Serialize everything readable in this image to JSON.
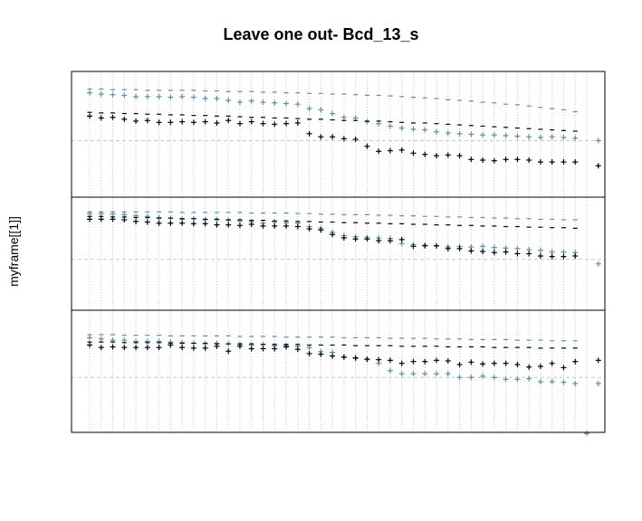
{
  "title": "Leave one out- Bcd_13_s",
  "ylabel": "myframe[[1]]",
  "colors": {
    "black": "#000000",
    "blue": "#5b8fa3",
    "grid": "#c8c8c8",
    "frame": "#000000"
  },
  "chart_data": {
    "type": "scatter",
    "title": "Leave one out- Bcd_13_s",
    "xlabel": "",
    "ylabel": "myframe[[1]]",
    "grid": "dotted vertical lines, dashed horizontal reference line",
    "columns": 43,
    "ylim": [
      -1,
      1
    ],
    "panels": [
      {
        "reference_y": 0,
        "series": [
          {
            "color": "blue",
            "marker": "+",
            "y": [
              0.76,
              0.74,
              0.73,
              0.72,
              0.7,
              0.7,
              0.7,
              0.69,
              0.7,
              0.69,
              0.67,
              0.67,
              0.64,
              0.61,
              0.63,
              0.61,
              0.6,
              0.59,
              0.58,
              0.51,
              0.49,
              0.43,
              0.37,
              0.36,
              0.3,
              0.27,
              0.23,
              0.2,
              0.18,
              0.17,
              0.14,
              0.12,
              0.11,
              0.1,
              0.09,
              0.09,
              0.08,
              0.07,
              0.06,
              0.05,
              0.06,
              0.05,
              0.04
            ]
          },
          {
            "color": "blue",
            "marker": "-",
            "y": [
              0.82,
              0.82,
              0.81,
              0.81,
              0.81,
              0.8,
              0.8,
              0.8,
              0.8,
              0.8,
              0.79,
              0.79,
              0.78,
              0.78,
              0.78,
              0.77,
              0.77,
              0.76,
              0.76,
              0.75,
              0.75,
              0.74,
              0.74,
              0.73,
              0.72,
              0.72,
              0.71,
              0.7,
              0.69,
              0.68,
              0.67,
              0.65,
              0.64,
              0.63,
              0.61,
              0.6,
              0.58,
              0.57,
              0.55,
              0.53,
              0.51,
              0.49,
              0.46
            ]
          },
          {
            "color": "black",
            "marker": "+",
            "y": [
              0.39,
              0.36,
              0.37,
              0.34,
              0.31,
              0.32,
              0.29,
              0.29,
              0.3,
              0.29,
              0.3,
              0.28,
              0.32,
              0.27,
              0.3,
              0.27,
              0.26,
              0.27,
              0.28,
              0.11,
              0.06,
              0.06,
              0.03,
              0.02,
              -0.09,
              -0.17,
              -0.16,
              -0.15,
              -0.2,
              -0.22,
              -0.24,
              -0.23,
              -0.24,
              -0.3,
              -0.31,
              -0.32,
              -0.3,
              -0.3,
              -0.31,
              -0.34,
              -0.34,
              -0.34,
              -0.34
            ]
          },
          {
            "color": "black",
            "marker": "-",
            "y": [
              0.45,
              0.44,
              0.44,
              0.43,
              0.43,
              0.42,
              0.42,
              0.41,
              0.41,
              0.4,
              0.4,
              0.39,
              0.39,
              0.38,
              0.37,
              0.37,
              0.36,
              0.36,
              0.35,
              0.34,
              0.34,
              0.33,
              0.32,
              0.32,
              0.31,
              0.31,
              0.3,
              0.29,
              0.28,
              0.28,
              0.27,
              0.26,
              0.25,
              0.24,
              0.23,
              0.22,
              0.21,
              0.2,
              0.19,
              0.18,
              0.17,
              0.16,
              0.15
            ]
          }
        ],
        "extra_points": [
          {
            "x": 44,
            "color": "blue",
            "marker": "+",
            "y": 0.0
          },
          {
            "x": 44,
            "color": "black",
            "marker": "+",
            "y": -0.4
          }
        ]
      },
      {
        "reference_y": 0,
        "series": [
          {
            "color": "blue",
            "marker": "+",
            "y": [
              0.81,
              0.81,
              0.8,
              0.79,
              0.77,
              0.76,
              0.74,
              0.73,
              0.71,
              0.72,
              0.7,
              0.7,
              0.69,
              0.68,
              0.67,
              0.64,
              0.66,
              0.65,
              0.64,
              0.58,
              0.55,
              0.48,
              0.42,
              0.4,
              0.39,
              0.38,
              0.37,
              0.28,
              0.26,
              0.25,
              0.24,
              0.22,
              0.23,
              0.22,
              0.23,
              0.21,
              0.2,
              0.19,
              0.17,
              0.16,
              0.13,
              0.13,
              0.12
            ]
          },
          {
            "color": "blue",
            "marker": "-",
            "y": [
              0.84,
              0.84,
              0.84,
              0.84,
              0.84,
              0.84,
              0.84,
              0.84,
              0.83,
              0.83,
              0.83,
              0.83,
              0.83,
              0.83,
              0.82,
              0.82,
              0.82,
              0.82,
              0.81,
              0.81,
              0.8,
              0.8,
              0.79,
              0.79,
              0.79,
              0.78,
              0.78,
              0.77,
              0.77,
              0.76,
              0.76,
              0.75,
              0.75,
              0.74,
              0.74,
              0.73,
              0.73,
              0.72,
              0.72,
              0.71,
              0.71,
              0.7,
              0.7
            ]
          },
          {
            "color": "black",
            "marker": "+",
            "y": [
              0.71,
              0.71,
              0.71,
              0.7,
              0.67,
              0.66,
              0.64,
              0.64,
              0.64,
              0.63,
              0.63,
              0.61,
              0.61,
              0.6,
              0.62,
              0.59,
              0.59,
              0.59,
              0.58,
              0.54,
              0.52,
              0.44,
              0.38,
              0.36,
              0.36,
              0.33,
              0.33,
              0.35,
              0.23,
              0.24,
              0.24,
              0.19,
              0.19,
              0.15,
              0.14,
              0.12,
              0.13,
              0.1,
              0.1,
              0.06,
              0.05,
              0.05,
              0.06
            ]
          },
          {
            "color": "black",
            "marker": "-",
            "y": [
              0.76,
              0.76,
              0.75,
              0.75,
              0.74,
              0.74,
              0.73,
              0.73,
              0.72,
              0.72,
              0.71,
              0.71,
              0.7,
              0.7,
              0.69,
              0.69,
              0.68,
              0.68,
              0.67,
              0.67,
              0.66,
              0.66,
              0.65,
              0.65,
              0.64,
              0.64,
              0.63,
              0.63,
              0.62,
              0.62,
              0.61,
              0.61,
              0.6,
              0.6,
              0.59,
              0.59,
              0.58,
              0.58,
              0.57,
              0.57,
              0.56,
              0.56,
              0.55
            ]
          }
        ],
        "extra_points": [
          {
            "x": 44,
            "color": "blue",
            "marker": "+",
            "y": -0.08
          }
        ]
      },
      {
        "reference_y": 0,
        "series": [
          {
            "color": "blue",
            "marker": "+",
            "y": [
              0.65,
              0.63,
              0.61,
              0.61,
              0.59,
              0.59,
              0.59,
              0.58,
              0.57,
              0.56,
              0.55,
              0.56,
              0.55,
              0.54,
              0.53,
              0.54,
              0.52,
              0.52,
              0.51,
              0.49,
              0.42,
              0.41,
              0.34,
              0.31,
              0.29,
              0.23,
              0.11,
              0.06,
              0.06,
              0.06,
              0.06,
              0.06,
              0.0,
              0.0,
              0.02,
              0.0,
              -0.03,
              -0.03,
              -0.02,
              -0.07,
              -0.07,
              -0.08,
              -0.1
            ]
          },
          {
            "color": "blue",
            "marker": "-",
            "y": [
              0.7,
              0.7,
              0.7,
              0.69,
              0.69,
              0.69,
              0.69,
              0.68,
              0.68,
              0.68,
              0.68,
              0.68,
              0.68,
              0.67,
              0.67,
              0.67,
              0.67,
              0.66,
              0.66,
              0.66,
              0.66,
              0.66,
              0.65,
              0.65,
              0.65,
              0.65,
              0.64,
              0.64,
              0.64,
              0.64,
              0.63,
              0.63,
              0.63,
              0.62,
              0.62,
              0.62,
              0.62,
              0.61,
              0.61,
              0.61,
              0.6,
              0.6,
              0.6
            ]
          },
          {
            "color": "black",
            "marker": "+",
            "y": [
              0.53,
              0.49,
              0.5,
              0.49,
              0.49,
              0.49,
              0.49,
              0.53,
              0.49,
              0.48,
              0.48,
              0.51,
              0.43,
              0.51,
              0.47,
              0.47,
              0.47,
              0.5,
              0.46,
              0.39,
              0.38,
              0.35,
              0.33,
              0.32,
              0.3,
              0.29,
              0.28,
              0.23,
              0.26,
              0.26,
              0.28,
              0.27,
              0.21,
              0.25,
              0.22,
              0.23,
              0.23,
              0.21,
              0.17,
              0.18,
              0.23,
              0.16,
              0.26
            ]
          },
          {
            "color": "black",
            "marker": "-",
            "y": [
              0.58,
              0.58,
              0.58,
              0.57,
              0.57,
              0.57,
              0.57,
              0.56,
              0.56,
              0.56,
              0.56,
              0.55,
              0.55,
              0.55,
              0.55,
              0.54,
              0.54,
              0.54,
              0.54,
              0.53,
              0.53,
              0.53,
              0.53,
              0.52,
              0.52,
              0.52,
              0.52,
              0.51,
              0.51,
              0.51,
              0.51,
              0.5,
              0.5,
              0.5,
              0.5,
              0.49,
              0.49,
              0.49,
              0.49,
              0.48,
              0.48,
              0.48,
              0.48
            ]
          }
        ],
        "extra_points": [
          {
            "x": 43,
            "color": "blue",
            "marker": "+",
            "y": -0.92
          },
          {
            "x": 44,
            "color": "blue",
            "marker": "+",
            "y": -0.1
          },
          {
            "x": 44,
            "color": "black",
            "marker": "+",
            "y": 0.28
          }
        ]
      }
    ]
  }
}
